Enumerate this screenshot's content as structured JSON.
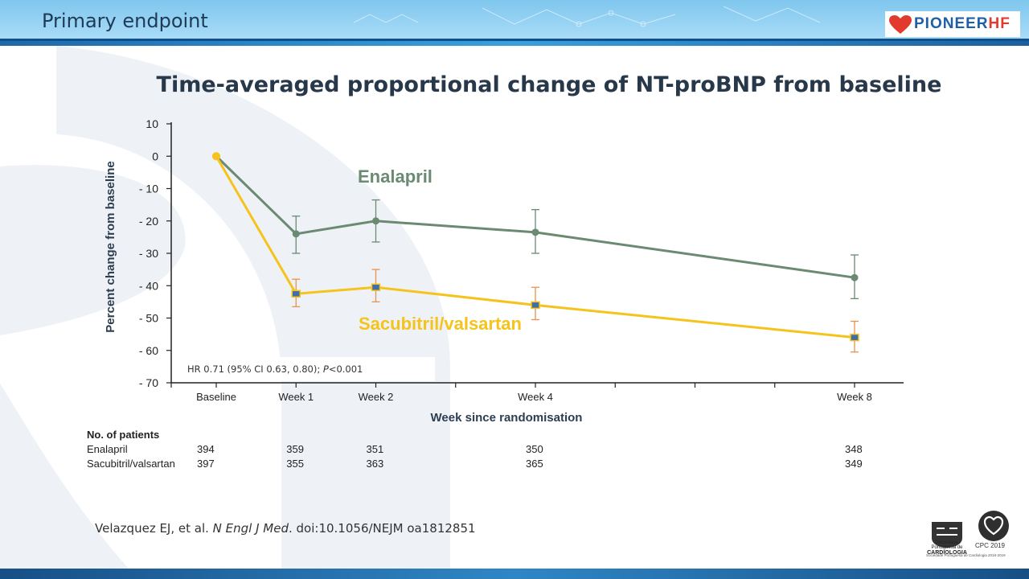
{
  "slide": {
    "title": "Primary endpoint",
    "logo": "PIONEERHF",
    "logo_parts": [
      "PIONEER",
      "HF"
    ],
    "brand_colors": {
      "banner": "#2b85c6",
      "enalapril": "#6a8a72",
      "sacubitril": "#f5c31c"
    }
  },
  "chart_data": {
    "type": "line",
    "title": "Time-averaged proportional change of NT-proBNP from baseline",
    "xlabel": "Week since randomisation",
    "ylabel": "Percent change from baseline",
    "ylim": [
      -70,
      10
    ],
    "yticks": [
      10,
      0,
      -10,
      -20,
      -30,
      -40,
      -50,
      -60,
      -70
    ],
    "ytick_labels": [
      "10",
      "0",
      "- 10",
      "- 20",
      "- 30",
      "- 40",
      "- 50",
      "- 60",
      "- 70"
    ],
    "xlim": [
      -0.2,
      8.3
    ],
    "x_minor_ticks": [
      0,
      1,
      2,
      3,
      4,
      5,
      6,
      7,
      8
    ],
    "x_labeled": [
      {
        "x": 0,
        "label": "Baseline"
      },
      {
        "x": 1,
        "label": "Week 1"
      },
      {
        "x": 2,
        "label": "Week 2"
      },
      {
        "x": 4,
        "label": "Week 4"
      },
      {
        "x": 8,
        "label": "Week 8"
      }
    ],
    "series": [
      {
        "name": "Enalapril",
        "color": "#6a8a72",
        "marker": "circle",
        "points": [
          {
            "x": 0,
            "y": 0
          },
          {
            "x": 1,
            "y": -24,
            "ci": [
              -30,
              -18.5
            ]
          },
          {
            "x": 2,
            "y": -20,
            "ci": [
              -26.5,
              -13.5
            ]
          },
          {
            "x": 4,
            "y": -23.5,
            "ci": [
              -30,
              -16.5
            ]
          },
          {
            "x": 8,
            "y": -37.5,
            "ci": [
              -44,
              -30.5
            ]
          }
        ]
      },
      {
        "name": "Sacubitril/valsartan",
        "color": "#f5c31c",
        "errorbar_color": "#e9924b",
        "marker": "square",
        "marker_color": "#3f6ea8",
        "points": [
          {
            "x": 0,
            "y": 0
          },
          {
            "x": 1,
            "y": -42.5,
            "ci": [
              -46.5,
              -38
            ]
          },
          {
            "x": 2,
            "y": -40.5,
            "ci": [
              -45,
              -35
            ]
          },
          {
            "x": 4,
            "y": -46,
            "ci": [
              -50.5,
              -40.5
            ]
          },
          {
            "x": 8,
            "y": -56,
            "ci": [
              -60.5,
              -51
            ]
          }
        ]
      }
    ],
    "annotation": {
      "text_plain": "HR 0.71 (95% CI 0.63, 0.80); ",
      "text_italic": "P",
      "text_tail": "<0.001"
    }
  },
  "patients": {
    "heading": "No. of patients",
    "rows": [
      {
        "label": "Enalapril",
        "values": [
          "394",
          "359",
          "351",
          "350",
          "348"
        ]
      },
      {
        "label": "Sacubitril/valsartan",
        "values": [
          "397",
          "355",
          "363",
          "365",
          "349"
        ]
      }
    ]
  },
  "reference": {
    "authors": "Velazquez EJ, et al. ",
    "journal": "N Engl J Med",
    "doi": ". doi:10.1056/NEJM oa1812851"
  },
  "footer": {
    "spc_name": "Sociedade Portuguesa de",
    "spc_main": "CARDIOLOGIA",
    "cpc_text": "CPC 2019",
    "note": "Sociedade Portuguesa de Cardiologia 2018-2019"
  }
}
